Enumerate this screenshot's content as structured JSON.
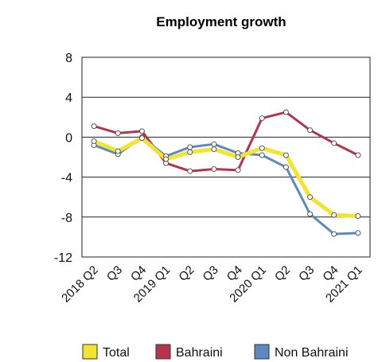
{
  "chart_data": {
    "type": "line",
    "title": "Employment growth",
    "xlabel": "",
    "ylabel": "",
    "ylim": [
      -12,
      8
    ],
    "yticks": [
      "8",
      "4",
      "0",
      "-4",
      "-8",
      "-12"
    ],
    "ytick_values": [
      8,
      4,
      0,
      -4,
      -8,
      -12
    ],
    "categories": [
      "2018 Q2",
      "Q3",
      "Q4",
      "2019 Q1",
      "Q2",
      "Q3",
      "Q4",
      "2020 Q1",
      "Q2",
      "Q3",
      "Q4",
      "2021 Q1"
    ],
    "grid": "horizontal",
    "legend_position": "bottom",
    "series": [
      {
        "name": "Total",
        "color": "#f2e52e",
        "values": [
          -0.4,
          -1.4,
          -0.1,
          -2.2,
          -1.5,
          -1.2,
          -2.0,
          -1.1,
          -1.8,
          -6.0,
          -7.8,
          -7.9
        ]
      },
      {
        "name": "Bahraini",
        "color": "#b5344e",
        "values": [
          1.1,
          0.4,
          0.6,
          -2.6,
          -3.4,
          -3.2,
          -3.3,
          1.9,
          2.5,
          0.7,
          -0.6,
          -1.8
        ]
      },
      {
        "name": "Non Bahraini",
        "color": "#5b8ac1",
        "values": [
          -0.8,
          -1.7,
          0.0,
          -1.9,
          -1.0,
          -0.7,
          -1.6,
          -1.8,
          -3.0,
          -7.7,
          -9.7,
          -9.6
        ]
      }
    ]
  }
}
